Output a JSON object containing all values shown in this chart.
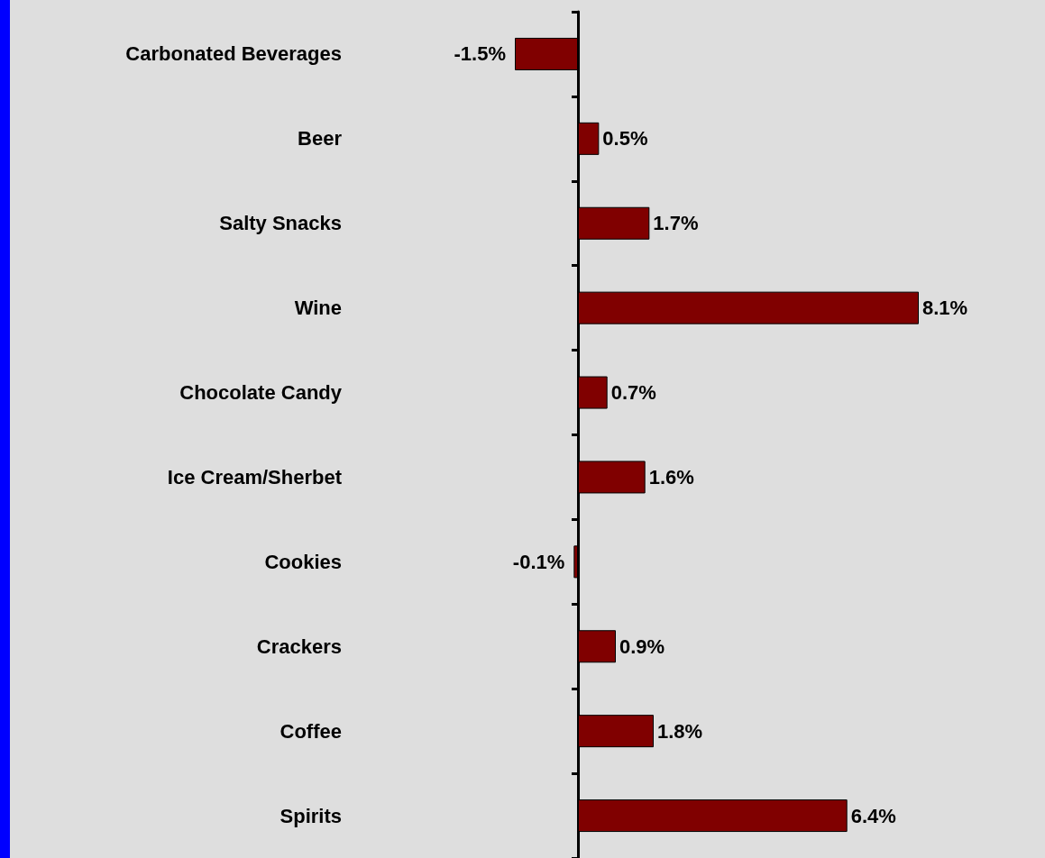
{
  "chart_data": {
    "type": "bar",
    "orientation": "horizontal",
    "categories": [
      "Carbonated Beverages",
      "Beer",
      "Salty Snacks",
      "Wine",
      "Chocolate Candy",
      "Ice Cream/Sherbet",
      "Cookies",
      "Crackers",
      "Coffee",
      "Spirits"
    ],
    "values": [
      -1.5,
      0.5,
      1.7,
      8.1,
      0.7,
      1.6,
      -0.1,
      0.9,
      1.8,
      6.4
    ],
    "value_labels": [
      "-1.5%",
      "0.5%",
      "1.7%",
      "8.1%",
      "0.7%",
      "1.6%",
      "-0.1%",
      "0.9%",
      "1.8%",
      "6.4%"
    ],
    "color": "#800000",
    "tick_labels": "y"
  }
}
